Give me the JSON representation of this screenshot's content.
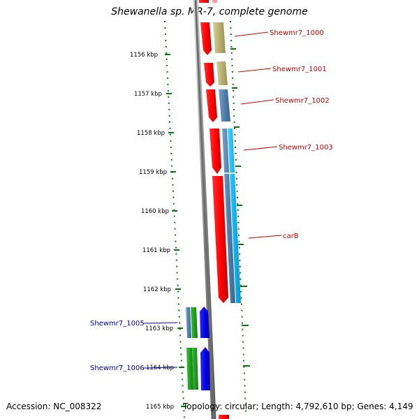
{
  "title": "Shewanella sp. MR-7, complete genome",
  "footer": {
    "accession": "Accession: NC_008322",
    "topology": "Topology: circular; Length: 4,792,610 bp; Genes: 4,149"
  },
  "ruler": {
    "ticks": [
      "1156 kbp",
      "1157 kbp",
      "1158 kbp",
      "1159 kbp",
      "1160 kbp",
      "1161 kbp",
      "1162 kbp",
      "1163 kbp",
      "1164 kbp",
      "1165 kbp"
    ]
  },
  "genes": [
    {
      "name": "Shewmr7_1000",
      "strand": "reverse",
      "color": "#cc0000"
    },
    {
      "name": "Shewmr7_1001",
      "strand": "reverse",
      "color": "#cc0000"
    },
    {
      "name": "Shewmr7_1002",
      "strand": "reverse",
      "color": "#cc0000"
    },
    {
      "name": "Shewmr7_1003",
      "strand": "reverse",
      "color": "#cc0000"
    },
    {
      "name": "carB",
      "strand": "reverse",
      "color": "#cc0000"
    },
    {
      "name": "Shewmr7_1005",
      "strand": "forward",
      "color": "#0000aa"
    },
    {
      "name": "Shewmr7_1006",
      "strand": "forward",
      "color": "#0000aa"
    }
  ],
  "colors": {
    "reverse_gene": "#ff0000",
    "forward_gene": "#0000dd",
    "reverse_label": "#cc0000",
    "forward_label": "#0000aa",
    "ruler": "#008000",
    "backbone": "#808080"
  }
}
